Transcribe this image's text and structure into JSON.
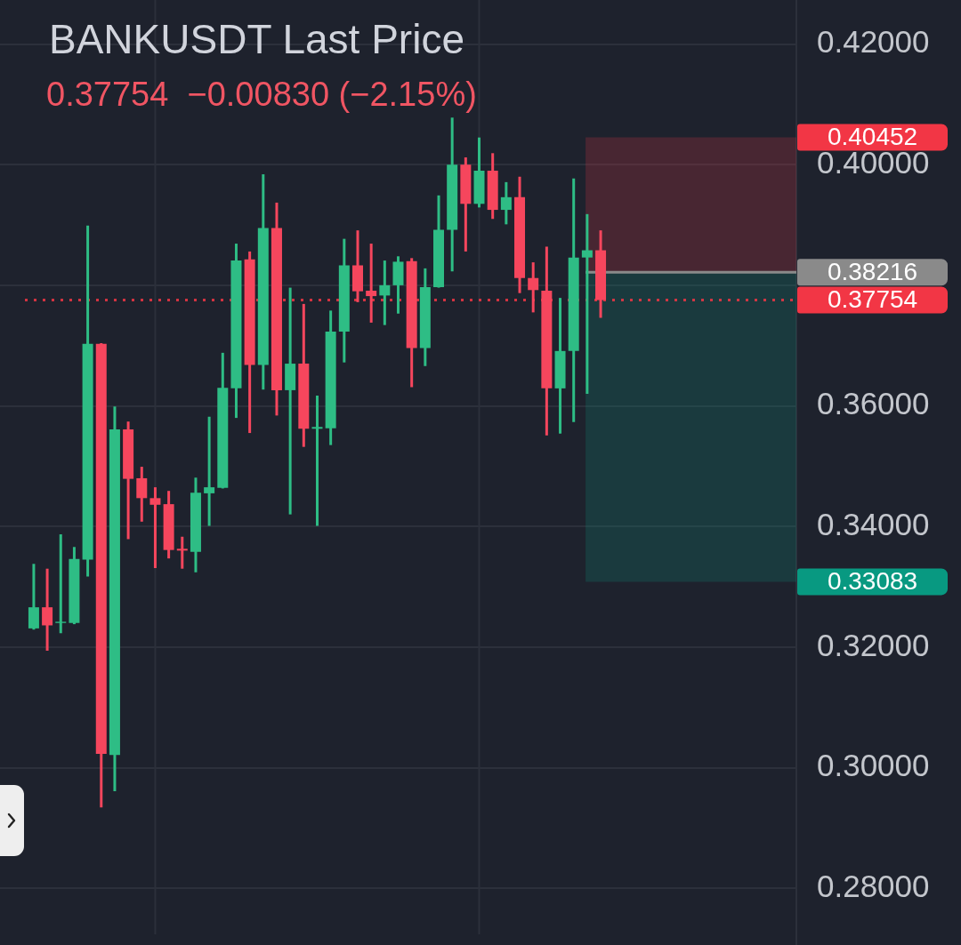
{
  "chart_data": {
    "type": "candlestick",
    "title": "BANKUSDT Last Price",
    "subtitle": "0.37754  −0.00830 (−2.15%)",
    "categories": [
      null,
      null,
      null,
      null,
      null,
      null,
      null,
      null,
      null,
      null,
      null,
      null,
      null,
      null,
      null,
      null,
      null,
      null,
      null,
      null,
      null,
      null,
      null,
      null,
      null,
      null,
      null,
      null,
      null,
      null,
      null,
      null,
      null,
      null,
      null,
      null,
      null,
      null,
      null,
      null,
      null,
      null,
      null,
      null,
      null,
      null,
      null,
      null,
      null,
      null,
      null,
      null,
      null,
      null,
      null,
      null,
      null,
      null,
      null
    ],
    "ohlc": [
      null,
      null,
      [
        0.3231,
        0.3338,
        0.3229,
        0.3266
      ],
      [
        0.3266,
        0.333,
        0.3194,
        0.3236
      ],
      [
        0.324,
        0.3387,
        0.3223,
        0.3242
      ],
      [
        0.324,
        0.3366,
        0.3238,
        0.3346
      ],
      [
        0.3345,
        0.3899,
        0.3317,
        0.3703
      ],
      [
        0.3703,
        0.3704,
        0.2934,
        0.3023
      ],
      [
        0.3021,
        0.3599,
        0.2961,
        0.3561
      ],
      [
        0.3561,
        0.3574,
        0.3379,
        0.3479
      ],
      [
        0.348,
        0.3499,
        0.3408,
        0.3447
      ],
      [
        0.3447,
        0.3465,
        0.3331,
        0.3436
      ],
      [
        0.3437,
        0.3459,
        0.3347,
        0.3361
      ],
      [
        0.3363,
        0.3383,
        0.333,
        0.336
      ],
      [
        0.3358,
        0.3481,
        0.3324,
        0.3456
      ],
      [
        0.3455,
        0.3582,
        0.3401,
        0.3465
      ],
      [
        0.3464,
        0.3688,
        0.3463,
        0.363
      ],
      [
        0.3629,
        0.3869,
        0.358,
        0.3841
      ],
      [
        0.3843,
        0.3856,
        0.3555,
        0.3668
      ],
      [
        0.3668,
        0.3984,
        0.3627,
        0.3895
      ],
      [
        0.3895,
        0.3937,
        0.3584,
        0.3626
      ],
      [
        0.3626,
        0.3796,
        0.342,
        0.367
      ],
      [
        0.367,
        0.3769,
        0.3532,
        0.3562
      ],
      [
        0.3562,
        0.3617,
        0.3401,
        0.3565
      ],
      [
        0.3563,
        0.3758,
        0.3535,
        0.3723
      ],
      [
        0.3723,
        0.3877,
        0.3672,
        0.3833
      ],
      [
        0.3833,
        0.3891,
        0.3772,
        0.379
      ],
      [
        0.3791,
        0.3869,
        0.3738,
        0.3782
      ],
      [
        0.3783,
        0.3841,
        0.3734,
        0.38
      ],
      [
        0.38,
        0.3848,
        0.3753,
        0.3839
      ],
      [
        0.384,
        0.3845,
        0.3631,
        0.3696
      ],
      [
        0.3696,
        0.3828,
        0.3666,
        0.3797
      ],
      [
        0.3797,
        0.3949,
        0.3796,
        0.3892
      ],
      [
        0.3892,
        0.4078,
        0.3823,
        0.4
      ],
      [
        0.4,
        0.4012,
        0.3856,
        0.3935
      ],
      [
        0.3935,
        0.4045,
        0.3929,
        0.399
      ],
      [
        0.399,
        0.4019,
        0.391,
        0.3925
      ],
      [
        0.3925,
        0.3971,
        0.3901,
        0.3946
      ],
      [
        0.3946,
        0.398,
        0.3787,
        0.3812
      ],
      [
        0.3812,
        0.3838,
        0.3755,
        0.3792
      ],
      [
        0.3791,
        0.3864,
        0.3551,
        0.3629
      ],
      [
        0.3629,
        0.3779,
        0.3554,
        0.3691
      ],
      [
        0.3691,
        0.3977,
        0.3573,
        0.3846
      ],
      [
        0.3846,
        0.3918,
        0.362,
        0.3858
      ],
      [
        0.3858,
        0.3891,
        0.3746,
        0.37754
      ],
      null,
      null,
      null,
      null,
      null,
      null,
      null,
      null,
      null,
      null,
      null,
      null,
      null,
      null
    ],
    "colors": [
      null,
      null,
      "#2ebd85",
      "#f6465d",
      "#2ebd85",
      "#2ebd85",
      "#2ebd85",
      "#f6465d",
      "#2ebd85",
      "#f6465d",
      "#f6465d",
      "#f6465d",
      "#f6465d",
      "#f6465d",
      "#2ebd85",
      "#2ebd85",
      "#2ebd85",
      "#2ebd85",
      "#f6465d",
      "#2ebd85",
      "#f6465d",
      "#2ebd85",
      "#f6465d",
      "#2ebd85",
      "#2ebd85",
      "#2ebd85",
      "#f6465d",
      "#f6465d",
      "#2ebd85",
      "#2ebd85",
      "#f6465d",
      "#2ebd85",
      "#2ebd85",
      "#2ebd85",
      "#f6465d",
      "#2ebd85",
      "#f6465d",
      "#2ebd85",
      "#f6465d",
      "#f6465d",
      "#f6465d",
      "#2ebd85",
      "#2ebd85",
      "#2ebd85",
      "#f6465d",
      null,
      null,
      null,
      null,
      null,
      null,
      null,
      null,
      null,
      null,
      null,
      null,
      null,
      null
    ],
    "ylim": [
      0.2706,
      0.4273
    ],
    "yticks": [
      {
        "value": 0.28,
        "label": "0.28000"
      },
      {
        "value": 0.3,
        "label": "0.30000"
      },
      {
        "value": 0.32,
        "label": "0.32000"
      },
      {
        "value": 0.34,
        "label": "0.34000"
      },
      {
        "value": 0.36,
        "label": "0.36000"
      },
      {
        "value": 0.38,
        "label": null
      },
      {
        "value": 0.4,
        "label": "0.40000"
      },
      {
        "value": 0.42,
        "label": "0.42000"
      }
    ],
    "grid": true,
    "tick_labels": "y",
    "ref_lines": [
      {
        "axis": "y",
        "value": 0.38216,
        "label": "0.38216",
        "color": "#8a8a8a"
      },
      {
        "axis": "y",
        "value": 0.37754,
        "label": "0.37754",
        "color": "#f23645",
        "line_style": "dotted"
      }
    ],
    "bands": [
      {
        "axis": "y",
        "from": 0.38216,
        "to": 0.40452,
        "label": "0.40452",
        "color": "#f23645"
      },
      {
        "axis": "y",
        "from": 0.38216,
        "to": 0.33083,
        "label": "0.33083",
        "color": "#089981"
      }
    ]
  }
}
